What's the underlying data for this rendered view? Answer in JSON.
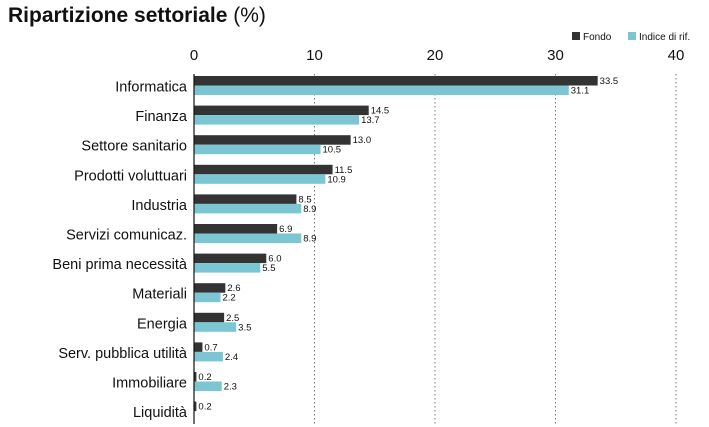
{
  "chart_data": {
    "type": "bar",
    "orientation": "horizontal",
    "title": "Ripartizione settoriale",
    "title_unit": "(%)",
    "categories": [
      "Informatica",
      "Finanza",
      "Settore sanitario",
      "Prodotti voluttuari",
      "Industria",
      "Servizi comunicaz.",
      "Beni prima necessità",
      "Materiali",
      "Energia",
      "Serv. pubblica utilità",
      "Immobiliare",
      "Liquidità"
    ],
    "series": [
      {
        "name": "Fondo",
        "color": "#333333",
        "values": [
          33.5,
          14.5,
          13.0,
          11.5,
          8.5,
          6.9,
          6.0,
          2.6,
          2.5,
          0.7,
          0.2,
          0.2
        ],
        "labels": [
          "33.5",
          "14.5",
          "13.0",
          "11.5",
          "8.5",
          "6.9",
          "6.0",
          "2.6",
          "2.5",
          "0.7",
          "0.2",
          "0.2"
        ]
      },
      {
        "name": "Indice di rif.",
        "color": "#7cc6d3",
        "values": [
          31.1,
          13.7,
          10.5,
          10.9,
          8.9,
          8.9,
          5.5,
          2.2,
          3.5,
          2.4,
          2.3,
          null
        ],
        "labels": [
          "31.1",
          "13.7",
          "10.5",
          "10.9",
          "8.9",
          "8.9",
          "5.5",
          "2.2",
          "3.5",
          "2.4",
          "2.3",
          ""
        ]
      }
    ],
    "xlim": [
      0,
      40
    ],
    "xticks": [
      0,
      10,
      20,
      30,
      40
    ],
    "grid": "vertical-dotted",
    "axis_position": "top",
    "legend": "top-right"
  }
}
